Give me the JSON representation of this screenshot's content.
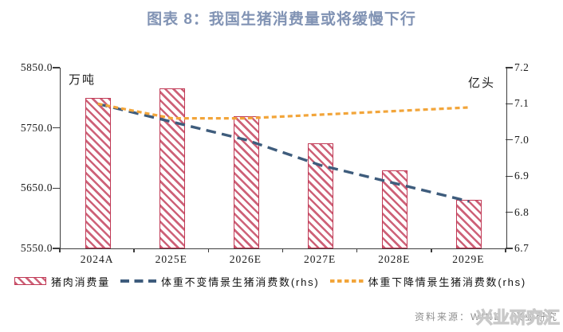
{
  "title": "图表 8：我国生猪消费量或将缓慢下行",
  "colors": {
    "title": "#8193b4",
    "axis": "#3c3c3c",
    "bar_red": "#c13a56",
    "line_blue": "#3e5c7c",
    "line_orange": "#f2a53a",
    "source_gray": "#8f8f8f"
  },
  "chart_data": {
    "type": "bar",
    "subtype": "combo-bar-line",
    "grid": false,
    "legend_position": "bottom",
    "categories": [
      "2024A",
      "2025E",
      "2026E",
      "2027E",
      "2028E",
      "2029E"
    ],
    "left_axis": {
      "unit": "万吨",
      "min": 5550,
      "max": 5850,
      "ticks": [
        "5850.0",
        "5750.0",
        "5650.0",
        "5550.0"
      ],
      "tick_values": [
        5850,
        5750,
        5650,
        5550
      ]
    },
    "right_axis": {
      "unit": "亿头",
      "min": 6.7,
      "max": 7.2,
      "ticks": [
        "7.2",
        "7.1",
        "7.0",
        "6.9",
        "6.8",
        "6.7"
      ],
      "tick_values": [
        7.2,
        7.1,
        7.0,
        6.9,
        6.8,
        6.7
      ]
    },
    "series": [
      {
        "name": "猪肉消费量",
        "type": "bar",
        "axis": "left",
        "color": "#c13a56",
        "hatch": "diagonal",
        "values": [
          5800,
          5815,
          5770,
          5725,
          5680,
          5630
        ]
      },
      {
        "name": "体重不变情景生猪消费数(rhs)",
        "type": "line",
        "axis": "right",
        "color": "#3e5c7c",
        "dash": [
          12.5,
          7.5
        ],
        "stroke_width": 3.4,
        "values": [
          7.1,
          7.05,
          7.0,
          6.93,
          6.88,
          6.83
        ]
      },
      {
        "name": "体重下降情景生猪消费数(rhs)",
        "type": "line",
        "axis": "right",
        "color": "#f2a53a",
        "dash": [
          6,
          4
        ],
        "stroke_width": 3.2,
        "values": [
          7.1,
          7.06,
          7.06,
          7.07,
          7.08,
          7.09
        ]
      }
    ]
  },
  "footer": {
    "source": "资料来源：WIND，兴业研究",
    "watermark": "兴业研究汇"
  }
}
